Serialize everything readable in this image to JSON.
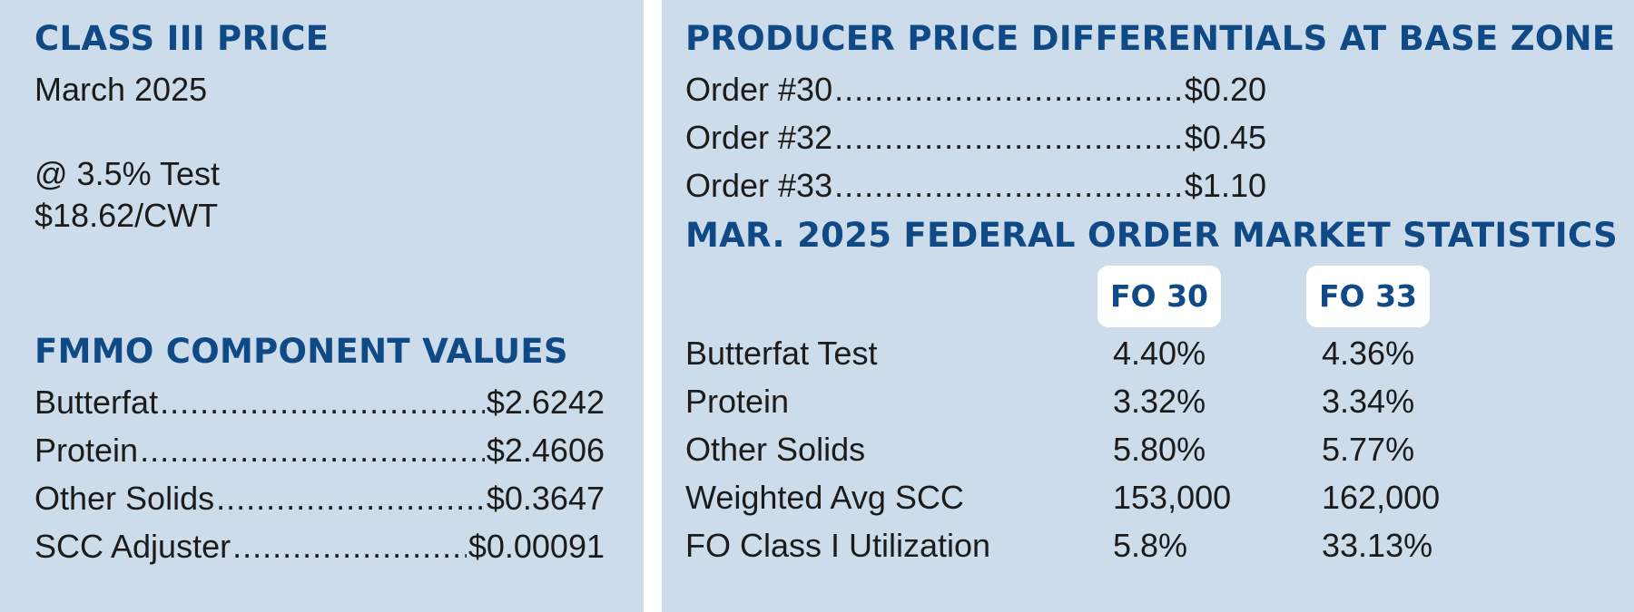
{
  "class_iii": {
    "heading": "CLASS III PRICE",
    "month": "March 2025",
    "test": "@ 3.5% Test",
    "price": "$18.62/CWT"
  },
  "components": {
    "heading": "FMMO COMPONENT VALUES",
    "items": [
      {
        "label": "Butterfat",
        "value": "$2.6242"
      },
      {
        "label": "Protein",
        "value": "$2.4606"
      },
      {
        "label": "Other Solids",
        "value": "$0.3647"
      },
      {
        "label": "SCC Adjuster",
        "value": "$0.00091"
      }
    ]
  },
  "differentials": {
    "heading": "PRODUCER PRICE DIFFERENTIALS AT BASE ZONE",
    "items": [
      {
        "label": "Order #30",
        "value": "$0.20"
      },
      {
        "label": "Order #32",
        "value": "$0.45"
      },
      {
        "label": "Order #33",
        "value": "$1.10"
      }
    ]
  },
  "market_stats": {
    "heading": "MAR. 2025 FEDERAL ORDER MARKET STATISTICS",
    "columns": [
      "FO 30",
      "FO 33"
    ],
    "rows": [
      {
        "label": "Butterfat Test",
        "fo30": "4.40%",
        "fo33": "4.36%"
      },
      {
        "label": "Protein",
        "fo30": "3.32%",
        "fo33": "3.34%"
      },
      {
        "label": "Other Solids",
        "fo30": "5.80%",
        "fo33": "5.77%"
      },
      {
        "label": "Weighted Avg SCC",
        "fo30": "153,000",
        "fo33": "162,000"
      },
      {
        "label": "FO Class I Utilization",
        "fo30": "5.8%",
        "fo33": "33.13%"
      }
    ]
  },
  "colors": {
    "panel_background": "#cddcea",
    "heading": "#0f4a86",
    "text": "#1b1b1b",
    "column_badge": "#ffffff"
  }
}
